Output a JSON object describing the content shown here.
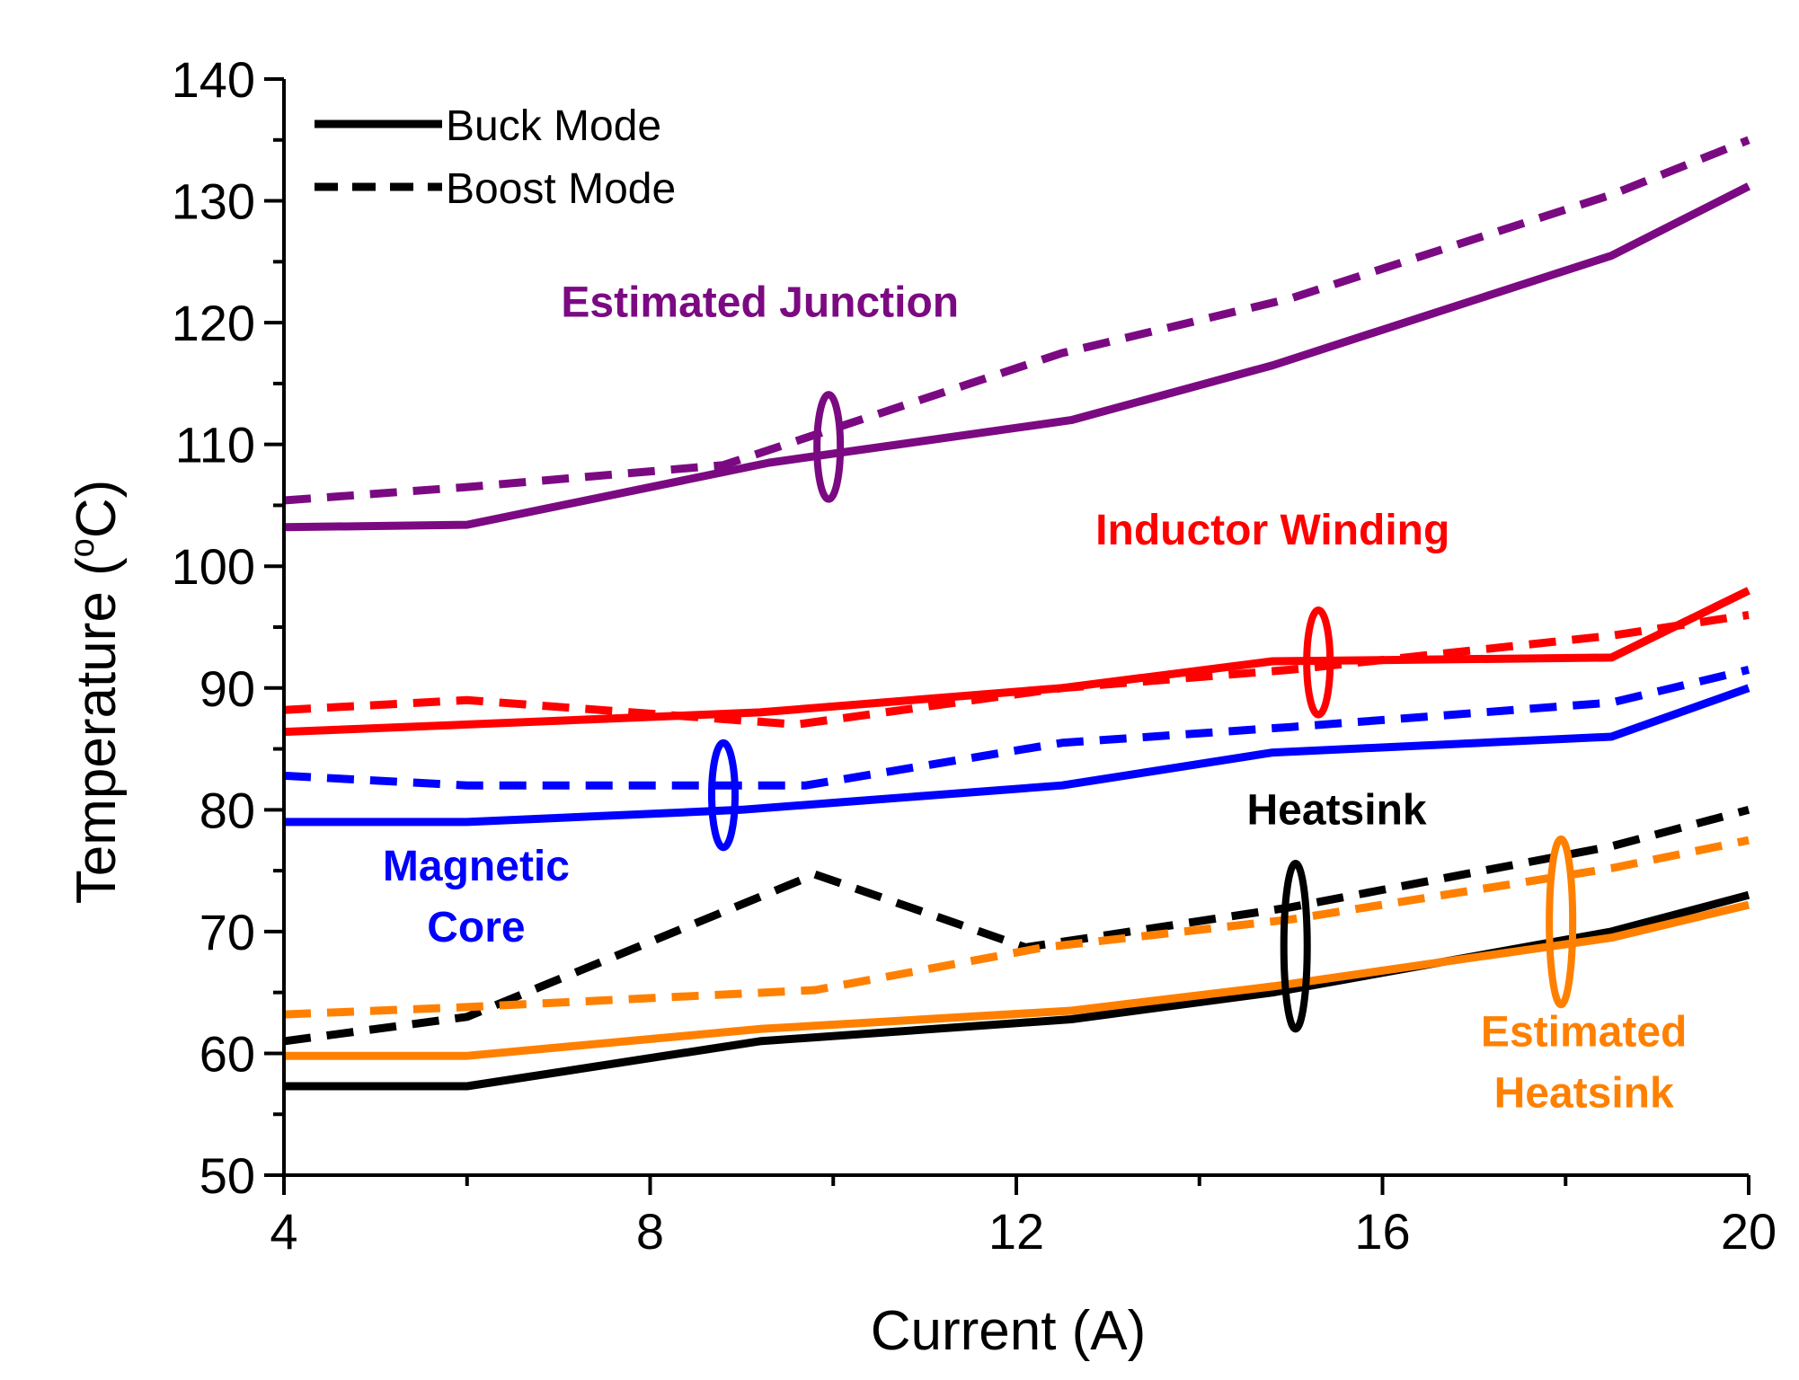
{
  "chart_data": {
    "type": "line",
    "title": "",
    "xlabel": "Current (A)",
    "ylabel_main": "Temperature (",
    "ylabel_sup": "o",
    "ylabel_tail": "C)",
    "xlim": [
      4,
      20
    ],
    "ylim": [
      50,
      140
    ],
    "xticks": [
      4,
      8,
      12,
      16,
      20
    ],
    "yticks": [
      50,
      60,
      70,
      80,
      90,
      100,
      110,
      120,
      130,
      140
    ],
    "grid": false,
    "legend": {
      "position": "top-left",
      "entries": [
        {
          "label": "Buck Mode",
          "style": "solid"
        },
        {
          "label": "Boost Mode",
          "style": "dashed"
        }
      ]
    },
    "series": [
      {
        "group": "junction",
        "mode": "buck",
        "color": "#7b0a82",
        "x": [
          4,
          6,
          9.3,
          12.6,
          14.8,
          18.5,
          20
        ],
        "y": [
          103.2,
          103.4,
          108.5,
          112,
          116.5,
          125.5,
          131.2
        ]
      },
      {
        "group": "junction",
        "mode": "boost",
        "color": "#7b0a82",
        "x": [
          4,
          6,
          8.8,
          12.5,
          15,
          18.5,
          20
        ],
        "y": [
          105.4,
          106.5,
          108.3,
          117.5,
          122,
          130.5,
          135
        ]
      },
      {
        "group": "winding",
        "mode": "buck",
        "color": "#ff0000",
        "x": [
          4,
          6,
          9.2,
          12.5,
          14.8,
          18.5,
          20
        ],
        "y": [
          86.4,
          87,
          88,
          90,
          92.2,
          92.5,
          98
        ]
      },
      {
        "group": "winding",
        "mode": "boost",
        "color": "#ff0000",
        "x": [
          4,
          6,
          9.6,
          12.5,
          15,
          18.5,
          20
        ],
        "y": [
          88.2,
          89,
          87,
          90,
          91.5,
          94.3,
          96
        ]
      },
      {
        "group": "core",
        "mode": "buck",
        "color": "#0000ff",
        "x": [
          4,
          6,
          9,
          12.5,
          14.8,
          18.5,
          20
        ],
        "y": [
          79,
          79,
          80,
          82,
          84.7,
          86,
          90
        ]
      },
      {
        "group": "core",
        "mode": "boost",
        "color": "#0000ff",
        "x": [
          4,
          6,
          9.7,
          12.5,
          15,
          18.5,
          20
        ],
        "y": [
          82.8,
          82,
          82,
          85.5,
          86.8,
          88.8,
          91.5
        ]
      },
      {
        "group": "heatsink",
        "mode": "buck",
        "color": "#000000",
        "x": [
          4,
          6,
          9.2,
          12.6,
          14.8,
          18.5,
          20
        ],
        "y": [
          57.3,
          57.3,
          61,
          62.8,
          65,
          70,
          73
        ]
      },
      {
        "group": "heatsink",
        "mode": "boost",
        "color": "#000000",
        "x": [
          4,
          6,
          9.8,
          12.1,
          15,
          18.5,
          20
        ],
        "y": [
          61,
          63,
          74.7,
          68.7,
          72,
          77,
          80
        ]
      },
      {
        "group": "est_heatsink",
        "mode": "buck",
        "color": "#ff8000",
        "x": [
          4,
          6,
          9.2,
          12.6,
          14.8,
          18.5,
          20
        ],
        "y": [
          59.8,
          59.8,
          62,
          63.5,
          65.5,
          69.5,
          72.2
        ]
      },
      {
        "group": "est_heatsink",
        "mode": "boost",
        "color": "#ff8000",
        "x": [
          4,
          6,
          9.8,
          12.3,
          15,
          18.5,
          20
        ],
        "y": [
          63.2,
          63.8,
          65.2,
          68.7,
          71,
          75.2,
          77.5
        ]
      }
    ],
    "annotations": [
      {
        "lines": [
          "Estimated Junction"
        ],
        "color": "#7b0a82",
        "anchor_x": 9.2,
        "anchor_y": 120.5,
        "align": "middle",
        "ellipse_x": 9.95,
        "ellipse_y": 109.8,
        "ellipse_ry_data": 4.3
      },
      {
        "lines": [
          "Inductor Winding"
        ],
        "color": "#ff0000",
        "anchor_x": 14.8,
        "anchor_y": 101.8,
        "align": "middle",
        "ellipse_x": 15.3,
        "ellipse_y": 92.1,
        "ellipse_ry_data": 4.3
      },
      {
        "lines": [
          "Magnetic",
          "Core"
        ],
        "color": "#0000ff",
        "anchor_x": 6.1,
        "anchor_y": 74.2,
        "align": "middle",
        "ellipse_x": 8.8,
        "ellipse_y": 81.2,
        "ellipse_ry_data": 4.3
      },
      {
        "lines": [
          "Heatsink"
        ],
        "color": "#000000",
        "anchor_x": 15.5,
        "anchor_y": 78.8,
        "align": "middle",
        "ellipse_x": 15.05,
        "ellipse_y": 68.8,
        "ellipse_ry_data": 6.8
      },
      {
        "lines": [
          "Estimated",
          "Heatsink"
        ],
        "color": "#ff8000",
        "anchor_x": 18.2,
        "anchor_y": 60.6,
        "align": "middle",
        "ellipse_x": 17.95,
        "ellipse_y": 70.8,
        "ellipse_ry_data": 6.8
      }
    ]
  }
}
